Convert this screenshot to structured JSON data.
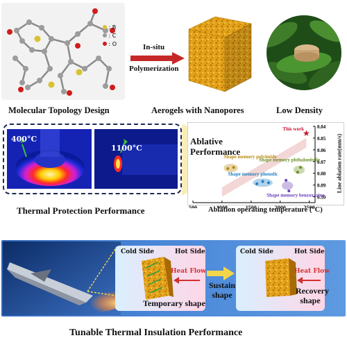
{
  "top": {
    "legend": {
      "b": "B",
      "c": "C",
      "o": "O"
    },
    "arrow_label_1": "In-situ",
    "arrow_label_2": "Polymerization",
    "caption_1": "Molecular Topology Design",
    "caption_2": "Aerogels with Nanopores",
    "caption_3": "Low Density"
  },
  "middle": {
    "thermal_img_1_temp": "400°C",
    "thermal_img_2_temp": "1100°C",
    "caption_left": "Thermal Protection Performance",
    "chart_caption": "Ablative\nPerformance"
  },
  "bottom": {
    "title": "Tunable Thermal Insulation Performance",
    "left_cold": "Cold Side",
    "left_hot": "Hot Side",
    "left_heat_flow": "Heat Flow",
    "left_shape": "Temporary shape",
    "middle_label": "Sustain shape",
    "right_cold": "Cold Side",
    "right_hot": "Hot Side",
    "right_heat_flow": "Heat Flow",
    "right_shape": "Recovery shape"
  },
  "colors": {
    "legend_b": "#d8c230",
    "legend_c": "#9a9a9a",
    "legend_o": "#d01c1c",
    "aerogel": "#e3a21a",
    "chart_this_work": "#c4122f",
    "chart_polyimide": "#b8860b",
    "chart_phenolic": "#1e7fc4",
    "chart_phthalonitrile": "#6b8e23",
    "chart_benzoxazine": "#6a3fb8"
  },
  "chart_data": {
    "type": "scatter",
    "xlabel": "Ablation operating temperature (°C)",
    "ylabel": "Line ablation rate(mm/s)",
    "xticks": [
      500,
      1000,
      1500,
      2000,
      2500
    ],
    "yticks": [
      0.04,
      0.05,
      0.06,
      0.07,
      0.08,
      0.09,
      0.1
    ],
    "xlim": [
      500,
      2600
    ],
    "ylim": [
      0.04,
      0.105
    ],
    "y_inverted": true,
    "series": [
      {
        "name": "This work",
        "x": [
          2450
        ],
        "y": [
          0.046
        ]
      },
      {
        "name": "Shape memory polyimide",
        "x": [
          1100,
          1200
        ],
        "y": [
          0.076,
          0.075
        ]
      },
      {
        "name": "Shape memory phthalonitrile",
        "x": [
          2300,
          2350
        ],
        "y": [
          0.079,
          0.075
        ]
      },
      {
        "name": "Shape memory phenolic",
        "x": [
          1600,
          1700,
          1800
        ],
        "y": [
          0.089,
          0.087,
          0.088
        ]
      },
      {
        "name": "Shape memory benzoxazine",
        "x": [
          2100,
          2150
        ],
        "y": [
          0.086,
          0.095
        ]
      }
    ]
  }
}
